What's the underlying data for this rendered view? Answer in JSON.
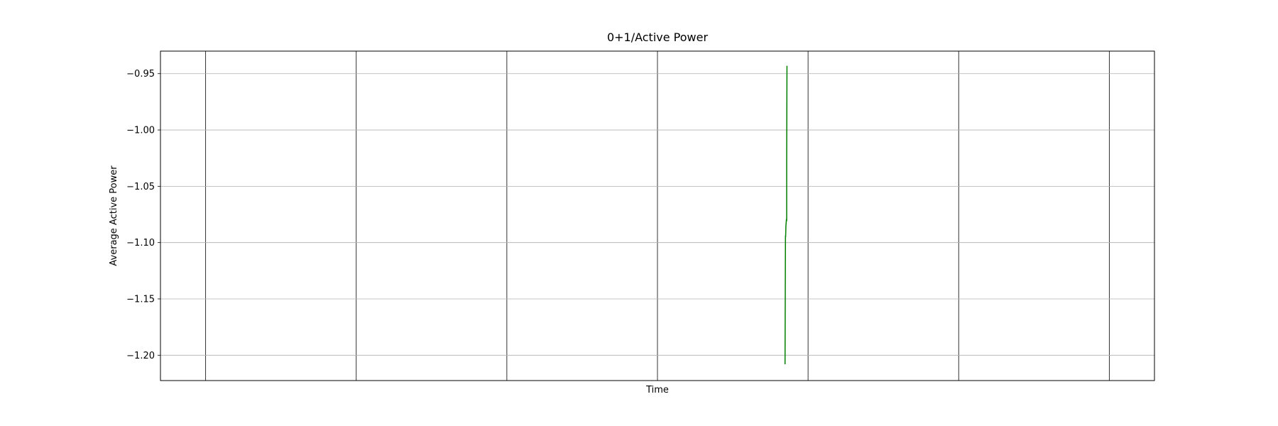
{
  "chart_data": {
    "type": "line",
    "title": "0+1/Active Power",
    "xlabel": "Time",
    "ylabel": "Average Active Power",
    "xlim": [
      0,
      6.6
    ],
    "ylim": [
      -1.2225,
      -0.93
    ],
    "yticks": [
      -0.95,
      -1.0,
      -1.05,
      -1.1,
      -1.15,
      -1.2
    ],
    "ytick_labels": [
      "−0.95",
      "−1.00",
      "−1.05",
      "−1.10",
      "−1.15",
      "−1.20"
    ],
    "x_gridlines": [
      0.3,
      1.3,
      2.3,
      3.3,
      4.3,
      5.3,
      6.3
    ],
    "grid": true,
    "series": [
      {
        "color": "#008000",
        "x": [
          4.147,
          4.15,
          4.151,
          4.153,
          4.155,
          4.156,
          4.157,
          4.158,
          4.158,
          4.16
        ],
        "y": [
          -1.208,
          -1.094,
          -1.095,
          -1.085,
          -1.082,
          -1.08,
          -1.079,
          -1.081,
          -1.03,
          -0.943
        ]
      }
    ]
  }
}
